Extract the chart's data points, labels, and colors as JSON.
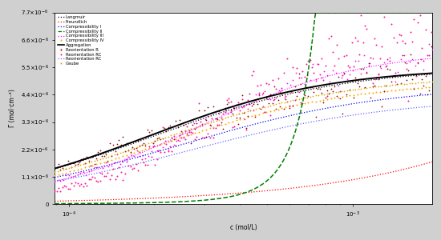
{
  "title": "",
  "xlabel": "c (mol/L)",
  "ylabel": "Γ (mol·cm⁻²)",
  "xlim_log": [
    -4,
    -2.7
  ],
  "ylim": [
    0,
    7.7e-06
  ],
  "background_color": "#d0d0d0",
  "plot_background": "#ffffff",
  "legend_entries": [
    "Langmuir",
    "Freundlich",
    "Compressibility I",
    "Compressibility II",
    "Compressibility III",
    "Compressibility IV",
    "Aggregation",
    "Reorientation R",
    "Reorientation RC",
    "Reorientation RC",
    "Gaube"
  ],
  "ytick_vals": [
    0,
    1.1e-06,
    2.2e-06,
    3.3e-06,
    4.4e-06,
    5.5e-06,
    6.6e-06,
    7.7e-06
  ]
}
